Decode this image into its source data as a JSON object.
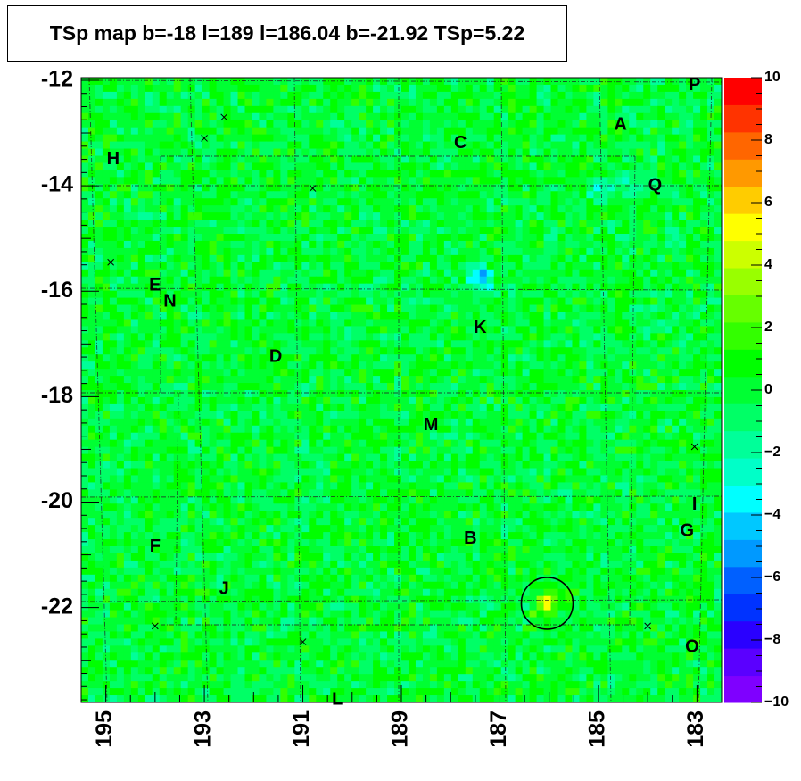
{
  "chart_data": {
    "type": "heatmap",
    "title": "TSp map b=-18 l=189 l=186.04 b=-21.92 TSp=5.22",
    "x_axis": {
      "reversed": true,
      "range": [
        195.5,
        182.5
      ],
      "ticks": [
        "195",
        "193",
        "191",
        "189",
        "187",
        "185",
        "183"
      ]
    },
    "y_axis": {
      "range": [
        -23.8,
        -11.95
      ],
      "ticks": [
        "-12",
        "-14",
        "-16",
        "-18",
        "-20",
        "-22"
      ]
    },
    "colorbar": {
      "range": [
        -10,
        10
      ],
      "ticks": [
        "10",
        "8",
        "6",
        "4",
        "2",
        "0",
        "−2",
        "−4",
        "−6",
        "−8",
        "−10"
      ],
      "colors": [
        "#7f00ff",
        "#5a00ff",
        "#2a00ff",
        "#0033ff",
        "#0060ff",
        "#0099ff",
        "#00c8ff",
        "#00ffff",
        "#00ffc8",
        "#00ff99",
        "#00ff66",
        "#00ff33",
        "#00ff00",
        "#33ff00",
        "#66ff00",
        "#99ff00",
        "#ccff00",
        "#ffff00",
        "#ffcc00",
        "#ff9900",
        "#ff6600",
        "#ff3300",
        "#ff0000"
      ]
    },
    "background_value": 0,
    "hotspots": [
      {
        "l": 186.04,
        "b": -21.92,
        "value": 5.22
      },
      {
        "l": 187.4,
        "b": -15.75,
        "value": -6
      },
      {
        "l": 184.4,
        "b": -14.0,
        "value": -2
      },
      {
        "l": 185.0,
        "b": -14.1,
        "value": -3
      }
    ],
    "marked_source": {
      "l": 186.04,
      "b": -21.92
    },
    "cross_markers": [
      {
        "l": 192.6,
        "b": -12.7
      },
      {
        "l": 193.0,
        "b": -13.1
      },
      {
        "l": 190.8,
        "b": -14.05
      },
      {
        "l": 194.9,
        "b": -15.45
      },
      {
        "l": 183.05,
        "b": -18.95
      },
      {
        "l": 191.0,
        "b": -22.65
      },
      {
        "l": 184.0,
        "b": -22.35
      },
      {
        "l": 194.0,
        "b": -22.35
      }
    ],
    "region_labels": [
      {
        "text": "P",
        "l": 183.05,
        "b": -12.1
      },
      {
        "text": "A",
        "l": 184.55,
        "b": -12.85
      },
      {
        "text": "C",
        "l": 187.8,
        "b": -13.2
      },
      {
        "text": "H",
        "l": 194.85,
        "b": -13.5
      },
      {
        "text": "Q",
        "l": 183.85,
        "b": -14.0
      },
      {
        "text": "E",
        "l": 194.0,
        "b": -15.9
      },
      {
        "text": "N",
        "l": 193.7,
        "b": -16.2
      },
      {
        "text": "K",
        "l": 187.4,
        "b": -16.7
      },
      {
        "text": "D",
        "l": 191.55,
        "b": -17.25
      },
      {
        "text": "M",
        "l": 188.4,
        "b": -18.55
      },
      {
        "text": "I",
        "l": 183.05,
        "b": -20.05
      },
      {
        "text": "G",
        "l": 183.2,
        "b": -20.55
      },
      {
        "text": "B",
        "l": 187.6,
        "b": -20.7
      },
      {
        "text": "F",
        "l": 194.0,
        "b": -20.85
      },
      {
        "text": "J",
        "l": 192.6,
        "b": -21.65
      },
      {
        "text": "O",
        "l": 183.1,
        "b": -22.75
      },
      {
        "text": "L",
        "l": 190.3,
        "b": -23.75
      }
    ]
  }
}
